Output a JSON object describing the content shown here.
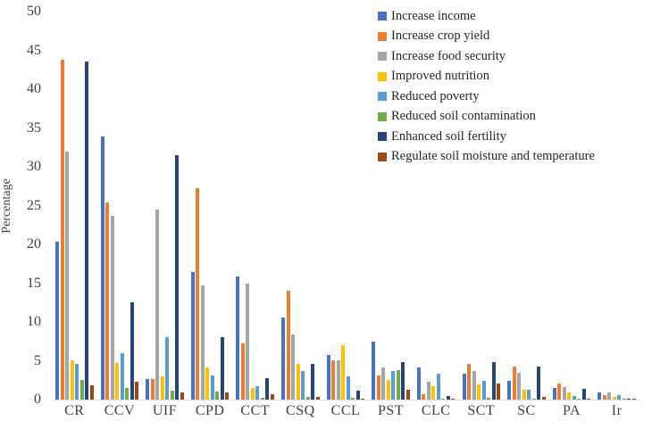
{
  "chart_data": {
    "type": "bar",
    "title": "",
    "xlabel": "",
    "ylabel": "Percentage",
    "ylim": [
      0,
      50
    ],
    "yticks": [
      0,
      5,
      10,
      15,
      20,
      25,
      30,
      35,
      40,
      45,
      50
    ],
    "grid": "off",
    "legend_position": "top-right",
    "categories": [
      "CR",
      "CCV",
      "UIF",
      "CPD",
      "CCT",
      "CSQ",
      "CCL",
      "PST",
      "CLC",
      "SCT",
      "SC",
      "PA",
      "Ir"
    ],
    "series": [
      {
        "name": "Increase income",
        "color": "#4472C4",
        "values": [
          20.3,
          33.9,
          2.6,
          16.4,
          15.9,
          10.6,
          5.7,
          7.5,
          4.1,
          3.3,
          2.4,
          1.5,
          0.9
        ]
      },
      {
        "name": "Increase crop yield",
        "color": "#ED7D31",
        "values": [
          43.8,
          25.4,
          2.7,
          27.2,
          7.3,
          14.0,
          5.1,
          3.1,
          0.7,
          4.6,
          4.3,
          2.1,
          0.6
        ]
      },
      {
        "name": "Increase food security",
        "color": "#A5A5A5",
        "values": [
          32.0,
          23.7,
          24.5,
          14.7,
          14.9,
          8.4,
          5.1,
          4.1,
          2.3,
          3.7,
          3.4,
          1.6,
          0.9
        ]
      },
      {
        "name": "Improved nutrition",
        "color": "#FFC000",
        "values": [
          5.1,
          4.7,
          3.0,
          4.1,
          1.5,
          4.6,
          7.0,
          2.5,
          1.7,
          1.9,
          1.3,
          0.9,
          0.4
        ]
      },
      {
        "name": "Reduced poverty",
        "color": "#5B9BD5",
        "values": [
          4.6,
          6.0,
          8.0,
          3.1,
          1.7,
          3.7,
          3.0,
          3.7,
          3.3,
          2.4,
          1.3,
          0.5,
          0.6
        ]
      },
      {
        "name": "Reduced soil contamination",
        "color": "#70AD47",
        "values": [
          2.5,
          1.5,
          1.1,
          1.0,
          0.2,
          0.3,
          0.2,
          3.8,
          0.1,
          0.2,
          0.1,
          0.1,
          0.1
        ]
      },
      {
        "name": "Enhanced soil fertility",
        "color": "#264478",
        "values": [
          43.6,
          12.5,
          31.5,
          8.1,
          2.8,
          4.6,
          1.1,
          4.8,
          0.5,
          4.8,
          4.3,
          1.4,
          0.1
        ]
      },
      {
        "name": "Regulate soil moisture and temperature",
        "color": "#9E480E",
        "values": [
          1.8,
          2.3,
          0.9,
          0.9,
          0.7,
          0.3,
          0.1,
          1.3,
          0.1,
          2.1,
          0.3,
          0.1,
          0.1
        ]
      }
    ]
  }
}
